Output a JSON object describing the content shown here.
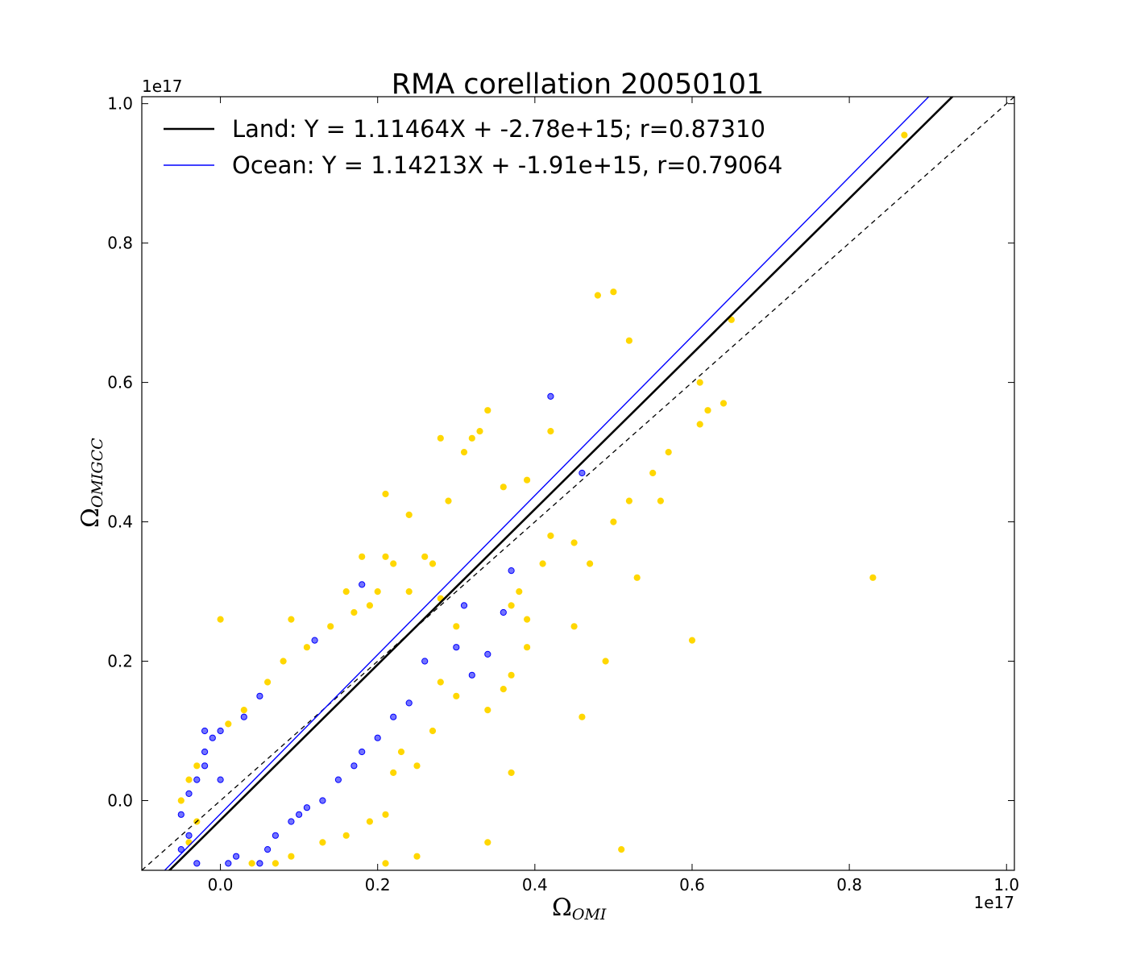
{
  "chart_data": {
    "type": "scatter",
    "title": "RMA corellation 20050101",
    "xlabel": {
      "symbol": "Ω",
      "subscript": "OMI"
    },
    "ylabel": {
      "symbol": "Ω",
      "subscript": "OMIGCC"
    },
    "x_offset_label": "1e17",
    "y_offset_label": "1e17",
    "xlim": [
      -0.1,
      1.01
    ],
    "ylim": [
      -0.1,
      1.01
    ],
    "x_ticks": [
      0.0,
      0.2,
      0.4,
      0.6,
      0.8,
      1.0
    ],
    "y_ticks": [
      0.0,
      0.2,
      0.4,
      0.6,
      0.8,
      1.0
    ],
    "x_tick_labels": [
      "0.0",
      "0.2",
      "0.4",
      "0.6",
      "0.8",
      "1.0"
    ],
    "y_tick_labels": [
      "0.0",
      "0.2",
      "0.4",
      "0.6",
      "0.8",
      "1.0"
    ],
    "grid": false,
    "legend_position": "top-left",
    "one_to_one_line": true,
    "fit_lines": [
      {
        "name": "Land: Y = 1.11464X + -2.78e+15; r=0.87310",
        "slope": 1.11464,
        "intercept": -0.0278,
        "color": "#000000"
      },
      {
        "name": "Ocean: Y = 1.14213X + -1.91e+15, r=0.79064",
        "slope": 1.14213,
        "intercept": -0.0191,
        "color": "#0000ff"
      }
    ],
    "series": [
      {
        "surface": "ocean",
        "color": "#0000ff",
        "points": [
          [
            -0.05,
            -0.02
          ],
          [
            -0.04,
            -0.05
          ],
          [
            -0.05,
            -0.07
          ],
          [
            -0.03,
            -0.09
          ],
          [
            -0.04,
            0.01
          ],
          [
            -0.03,
            0.03
          ],
          [
            -0.02,
            0.05
          ],
          [
            -0.02,
            0.07
          ],
          [
            -0.01,
            0.09
          ],
          [
            0.0,
            0.03
          ],
          [
            0.01,
            -0.09
          ],
          [
            0.02,
            -0.08
          ],
          [
            0.05,
            -0.09
          ],
          [
            0.06,
            -0.07
          ],
          [
            0.07,
            -0.05
          ],
          [
            0.09,
            -0.03
          ],
          [
            0.1,
            -0.02
          ],
          [
            0.11,
            -0.01
          ],
          [
            0.13,
            0.0
          ],
          [
            0.15,
            0.03
          ],
          [
            0.17,
            0.05
          ],
          [
            0.18,
            0.07
          ],
          [
            0.2,
            0.09
          ],
          [
            0.22,
            0.12
          ],
          [
            0.24,
            0.14
          ],
          [
            0.26,
            0.2
          ],
          [
            0.3,
            0.22
          ],
          [
            0.32,
            0.18
          ],
          [
            0.34,
            0.21
          ],
          [
            0.36,
            0.27
          ],
          [
            0.42,
            0.58
          ],
          [
            0.46,
            0.47
          ],
          [
            0.37,
            0.33
          ],
          [
            0.31,
            0.28
          ],
          [
            0.18,
            0.31
          ],
          [
            0.12,
            0.23
          ],
          [
            0.05,
            0.15
          ],
          [
            0.03,
            0.12
          ],
          [
            0.0,
            0.1
          ],
          [
            -0.02,
            0.1
          ]
        ]
      },
      {
        "surface": "land",
        "color": "#ffd700",
        "points": [
          [
            0.87,
            0.955
          ],
          [
            0.5,
            0.73
          ],
          [
            0.48,
            0.725
          ],
          [
            0.65,
            0.69
          ],
          [
            0.52,
            0.66
          ],
          [
            0.61,
            0.6
          ],
          [
            0.62,
            0.56
          ],
          [
            0.64,
            0.57
          ],
          [
            0.61,
            0.54
          ],
          [
            0.42,
            0.53
          ],
          [
            0.34,
            0.56
          ],
          [
            0.33,
            0.53
          ],
          [
            0.32,
            0.52
          ],
          [
            0.28,
            0.52
          ],
          [
            0.31,
            0.5
          ],
          [
            0.57,
            0.5
          ],
          [
            0.55,
            0.47
          ],
          [
            0.56,
            0.43
          ],
          [
            0.52,
            0.43
          ],
          [
            0.5,
            0.4
          ],
          [
            0.39,
            0.46
          ],
          [
            0.36,
            0.45
          ],
          [
            0.21,
            0.44
          ],
          [
            0.24,
            0.41
          ],
          [
            0.29,
            0.43
          ],
          [
            0.83,
            0.32
          ],
          [
            0.53,
            0.32
          ],
          [
            0.47,
            0.34
          ],
          [
            0.6,
            0.23
          ],
          [
            0.49,
            0.2
          ],
          [
            0.46,
            0.12
          ],
          [
            0.45,
            0.25
          ],
          [
            0.45,
            0.37
          ],
          [
            0.42,
            0.38
          ],
          [
            0.41,
            0.34
          ],
          [
            0.37,
            0.04
          ],
          [
            0.34,
            -0.06
          ],
          [
            0.51,
            -0.07
          ],
          [
            0.25,
            -0.08
          ],
          [
            0.21,
            -0.09
          ],
          [
            0.18,
            0.35
          ],
          [
            0.21,
            0.35
          ],
          [
            0.22,
            0.34
          ],
          [
            0.26,
            0.35
          ],
          [
            0.27,
            0.34
          ],
          [
            0.16,
            0.3
          ],
          [
            0.2,
            0.3
          ],
          [
            0.17,
            0.27
          ],
          [
            0.0,
            0.26
          ],
          [
            0.09,
            0.26
          ],
          [
            0.38,
            0.3
          ],
          [
            0.39,
            0.26
          ],
          [
            0.37,
            0.28
          ],
          [
            0.39,
            0.22
          ],
          [
            0.37,
            0.18
          ],
          [
            0.36,
            0.16
          ],
          [
            0.34,
            0.13
          ],
          [
            0.3,
            0.15
          ],
          [
            0.28,
            0.17
          ],
          [
            0.27,
            0.1
          ],
          [
            0.23,
            0.07
          ],
          [
            0.25,
            0.05
          ],
          [
            0.22,
            0.04
          ],
          [
            0.21,
            -0.02
          ],
          [
            0.19,
            -0.03
          ],
          [
            0.16,
            -0.05
          ],
          [
            0.13,
            -0.06
          ],
          [
            0.09,
            -0.08
          ],
          [
            0.07,
            -0.09
          ],
          [
            0.04,
            -0.09
          ],
          [
            -0.04,
            0.03
          ],
          [
            -0.05,
            0.0
          ],
          [
            -0.03,
            -0.03
          ],
          [
            -0.04,
            -0.06
          ],
          [
            -0.03,
            0.05
          ],
          [
            0.01,
            0.11
          ],
          [
            0.03,
            0.13
          ],
          [
            0.06,
            0.17
          ],
          [
            0.08,
            0.2
          ],
          [
            0.11,
            0.22
          ],
          [
            0.14,
            0.25
          ],
          [
            0.19,
            0.28
          ],
          [
            0.24,
            0.3
          ],
          [
            0.28,
            0.29
          ],
          [
            0.3,
            0.25
          ]
        ]
      }
    ]
  }
}
